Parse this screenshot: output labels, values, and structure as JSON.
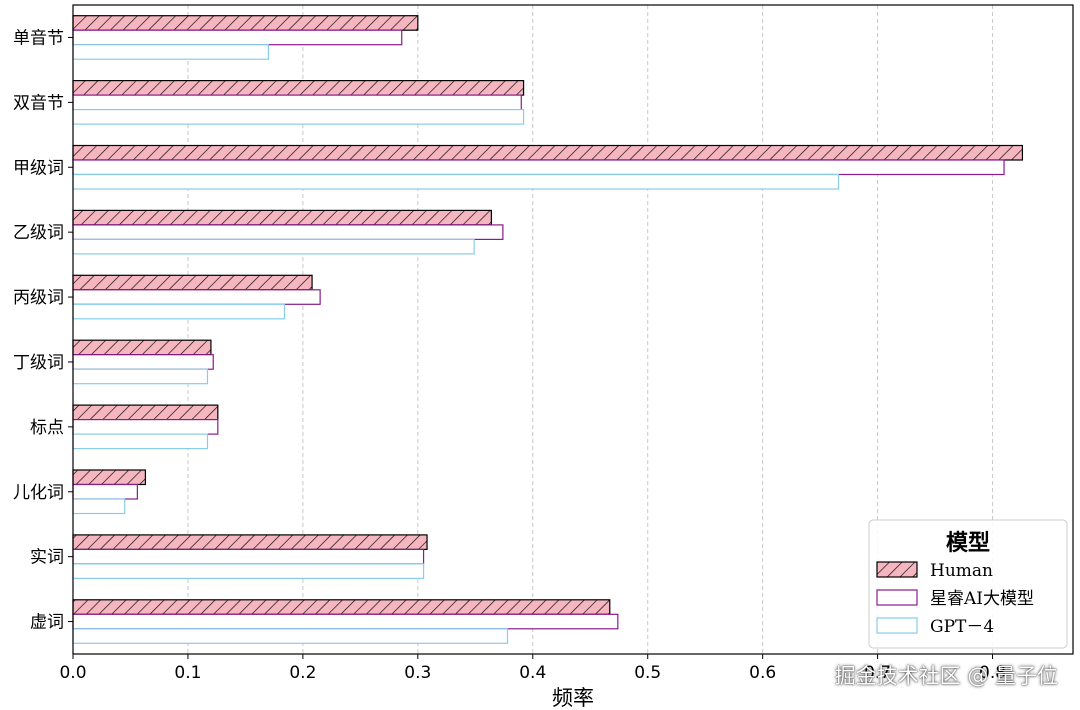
{
  "chart_data": {
    "type": "bar",
    "orientation": "horizontal",
    "categories": [
      "单音节",
      "双音节",
      "甲级词",
      "乙级词",
      "丙级词",
      "丁级词",
      "标点",
      "儿化词",
      "实词",
      "虚词"
    ],
    "series": [
      {
        "name": "Human",
        "values": [
          0.3,
          0.392,
          0.826,
          0.364,
          0.208,
          0.12,
          0.126,
          0.063,
          0.308,
          0.467
        ],
        "fill": "#f5b6c0",
        "stroke": "#000000",
        "hatch": true
      },
      {
        "name": "星睿AI大模型",
        "values": [
          0.286,
          0.39,
          0.81,
          0.374,
          0.215,
          0.122,
          0.126,
          0.056,
          0.305,
          0.474
        ],
        "fill": "#ffffff",
        "stroke": "#8b1a8b",
        "hatch": false
      },
      {
        "name": "GPT－4",
        "values": [
          0.17,
          0.392,
          0.666,
          0.349,
          0.184,
          0.117,
          0.117,
          0.045,
          0.305,
          0.378
        ],
        "fill": "#ffffff",
        "stroke": "#87cdea",
        "hatch": false
      }
    ],
    "xlabel": "频率",
    "ylabel": "",
    "xlim": [
      0,
      0.87
    ],
    "xticks": [
      "0.0",
      "0.1",
      "0.2",
      "0.3",
      "0.4",
      "0.5",
      "0.6",
      "0.7",
      "0.8"
    ],
    "grid": "vertical dashed",
    "legend": {
      "title": "模型",
      "placement": "lower-right"
    }
  },
  "watermark": "掘金技术社区 @ 量子位"
}
